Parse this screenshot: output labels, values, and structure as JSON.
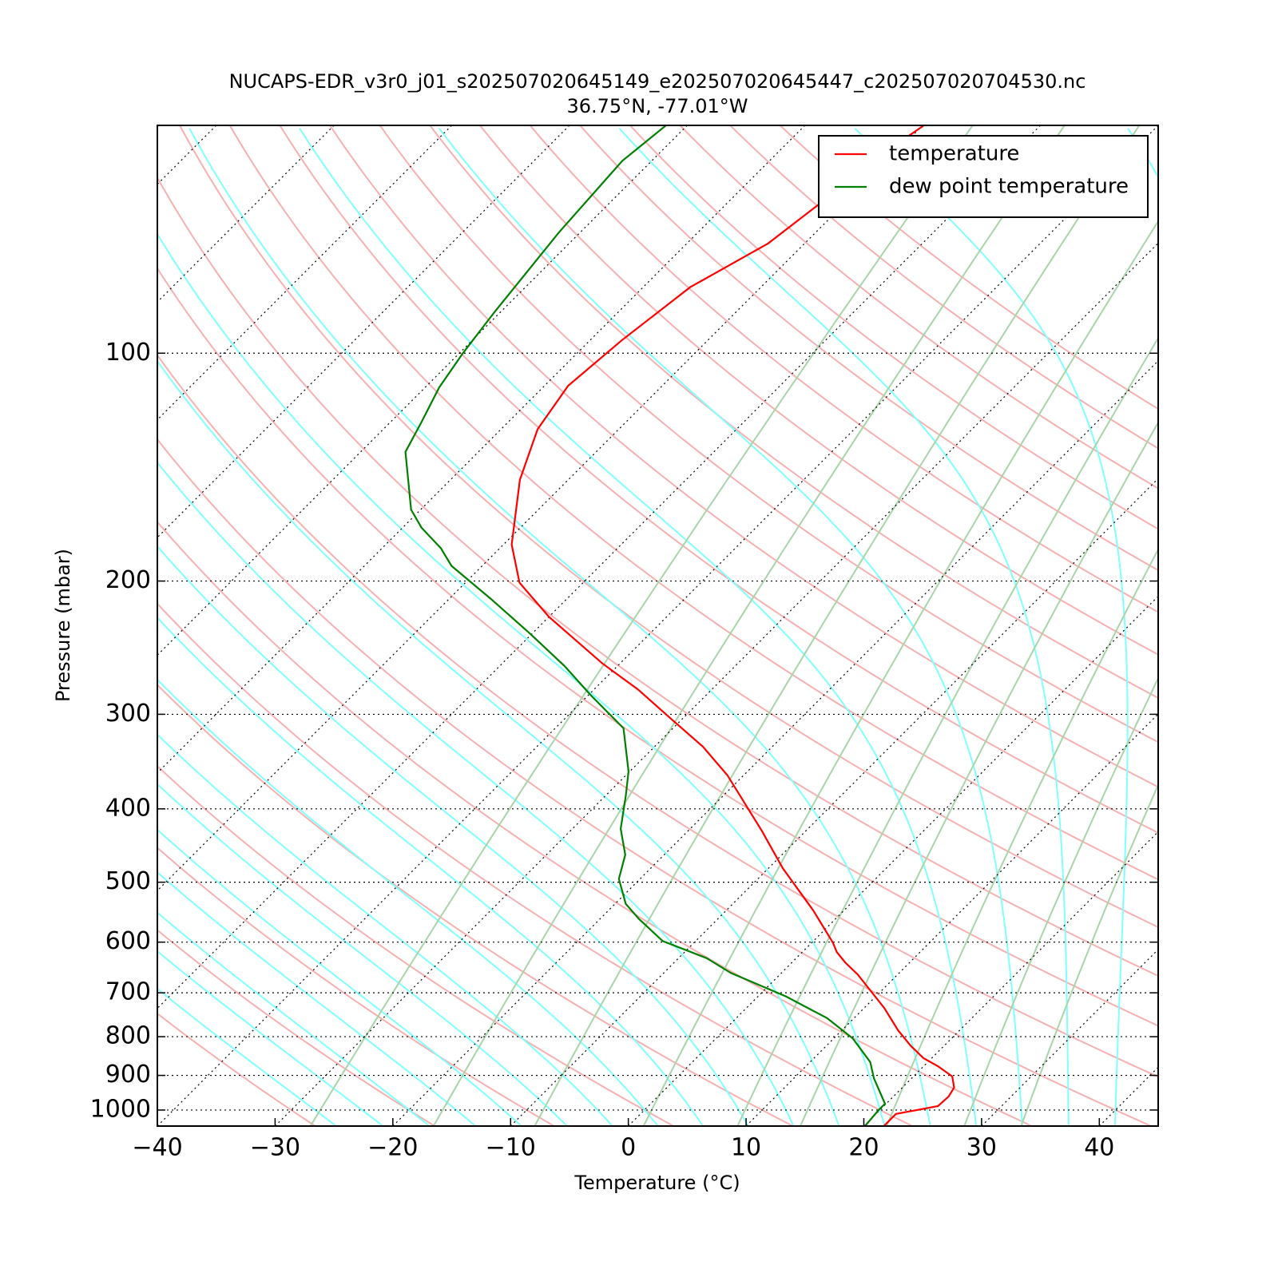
{
  "chart_data": {
    "type": "skewt",
    "title": "NUCAPS-EDR_v3r0_j01_s202507020645149_e202507020645447_c202507020704530.nc",
    "subtitle": "36.75°N, -77.01°W",
    "xlabel": "Temperature (°C)",
    "ylabel": "Pressure (mbar)",
    "xlim": [
      -40,
      45
    ],
    "ylim": [
      1050,
      50
    ],
    "ylog": true,
    "grid": true,
    "legend": "upper right",
    "xticks": [
      {
        "value": -40,
        "label": "−40"
      },
      {
        "value": -30,
        "label": "−30"
      },
      {
        "value": -20,
        "label": "−20"
      },
      {
        "value": -10,
        "label": "−10"
      },
      0,
      10,
      20,
      30,
      40
    ],
    "yticks": [
      100,
      200,
      300,
      400,
      500,
      600,
      700,
      800,
      900,
      1000
    ],
    "series": [
      {
        "name": "temperature",
        "color": "#ff0000",
        "pressure": [
          1050,
          1012,
          988,
          960,
          934,
          903,
          875,
          854,
          823,
          785,
          733,
          662,
          638,
          618,
          601,
          545,
          479,
          428,
          361,
          331,
          305,
          278,
          257,
          223,
          201,
          179,
          147,
          126,
          110.4,
          96.2,
          81.8,
          71.6,
          64.2,
          51.6,
          50
        ],
        "values": [
          21.7,
          21.7,
          24.6,
          24.7,
          24.4,
          23.3,
          21.2,
          19.3,
          17.2,
          14.8,
          11.7,
          6.6,
          4.5,
          2.9,
          1.8,
          -2.6,
          -8.8,
          -13.7,
          -21.4,
          -25.9,
          -30.8,
          -36.3,
          -41.5,
          -50.0,
          -55.4,
          -59.3,
          -64.1,
          -66.9,
          -68.0,
          -67.3,
          -66.0,
          -63.1,
          -62.2,
          -60.3,
          -59.9
        ]
      },
      {
        "name": "dew point temperature",
        "color": "#008000",
        "pressure": [
          1050,
          1000,
          981,
          908,
          864,
          804,
          756,
          708,
          659,
          630,
          598,
          559,
          534,
          495,
          460,
          425,
          384,
          357,
          313,
          283,
          259,
          235,
          211,
          191,
          181,
          170,
          161,
          135,
          123,
          111,
          100,
          88.4,
          69.3,
          55.7,
          50
        ],
        "values": [
          20.1,
          19.9,
          19.9,
          16.8,
          15.1,
          11.6,
          7.7,
          2.4,
          -4.3,
          -7.6,
          -12.8,
          -16.7,
          -19.1,
          -21.8,
          -23.3,
          -25.9,
          -28.3,
          -30.1,
          -34.2,
          -39.8,
          -44.5,
          -50.1,
          -56.5,
          -62.6,
          -65.0,
          -68.4,
          -70.8,
          -76.2,
          -77.4,
          -78.8,
          -79.7,
          -80.5,
          -81.8,
          -82.5,
          -81.8
        ]
      }
    ]
  }
}
